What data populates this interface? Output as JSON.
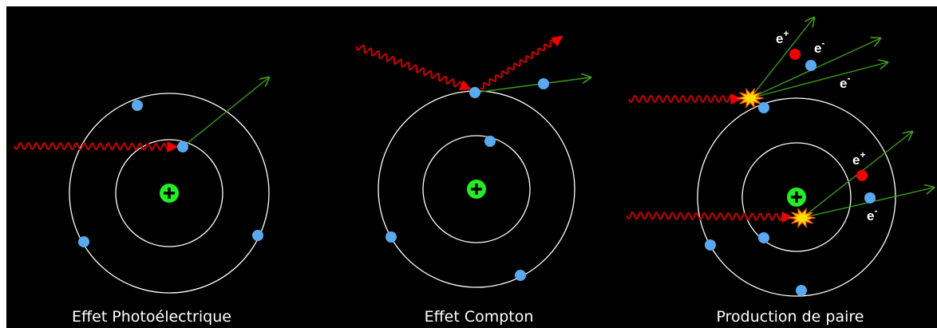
{
  "panels": [
    {
      "caption": "Effet Photoélectrique"
    },
    {
      "caption": "Effet Compton"
    },
    {
      "caption": "Production de paire",
      "labels": [
        {
          "base": "e",
          "sup": "+"
        },
        {
          "base": "e",
          "sup": "-"
        },
        {
          "base": "e",
          "sup": "-"
        },
        {
          "base": "e",
          "sup": "+"
        },
        {
          "base": "e",
          "sup": "-"
        }
      ]
    }
  ]
}
